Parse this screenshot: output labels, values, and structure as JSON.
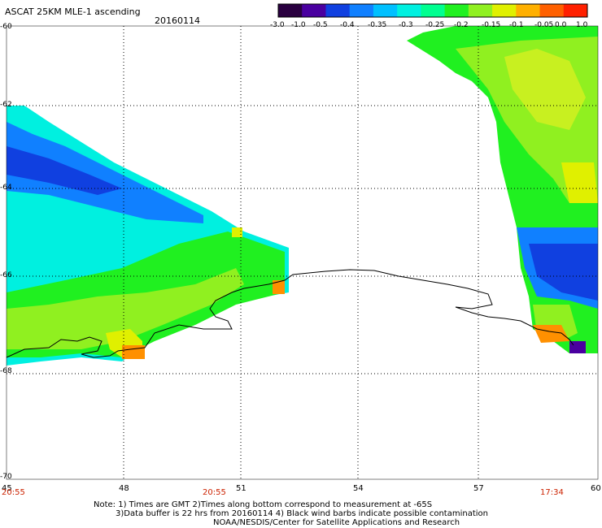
{
  "header": {
    "title": "ASCAT 25KM MLE-1 ascending",
    "date": "20160114"
  },
  "colorbar": {
    "labels": [
      "-3.0",
      "-1.0",
      "-0.5",
      "-0.4",
      "-0.35",
      "-0.3",
      "-0.25",
      "-0.2",
      "-0.15",
      "-0.1",
      "-0.05",
      "0.0",
      "1.0"
    ],
    "colors": [
      "#2a0040",
      "#4a00a0",
      "#1040e0",
      "#1080ff",
      "#00c0ff",
      "#00f0e0",
      "#00ff90",
      "#20f020",
      "#90f020",
      "#e0f000",
      "#ffb000",
      "#ff6000",
      "#ff2000"
    ]
  },
  "axes": {
    "lat_labels": [
      "-60",
      "-62",
      "-64",
      "-66",
      "-68",
      "-70"
    ],
    "lon_labels": [
      "45",
      "48",
      "51",
      "54",
      "57",
      "60"
    ]
  },
  "times": [
    "20:55",
    "20:55",
    "17:34"
  ],
  "notes": {
    "line1": "Note: 1) Times are GMT 2)Times along bottom correspond to measurement at -65S",
    "line2": "3)Data buffer is 22 hrs from 20160114 4) Black wind barbs indicate possible contamination",
    "line3": "NOAA/NESDIS/Center for Satellite Applications and Research"
  }
}
